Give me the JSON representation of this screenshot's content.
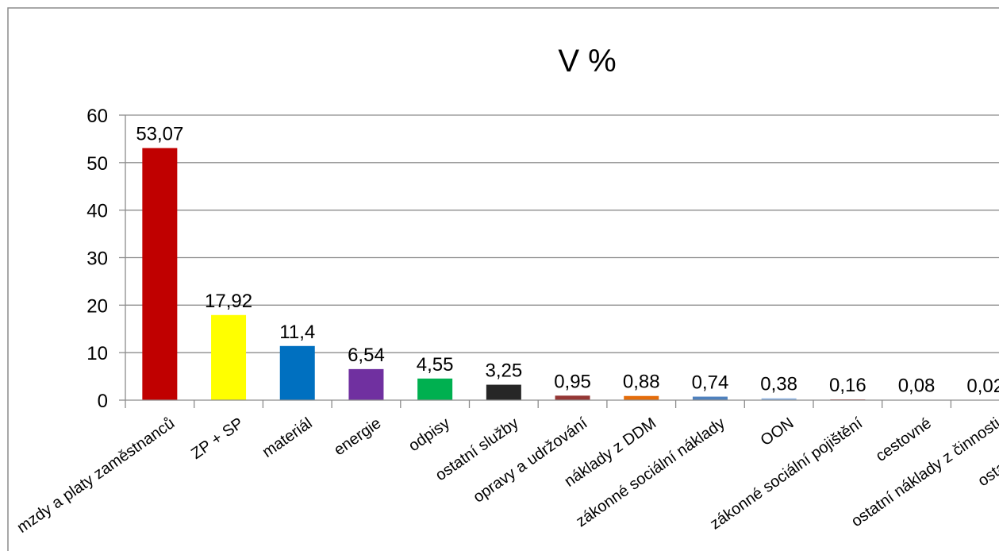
{
  "chart_data": {
    "type": "bar",
    "title": "V %",
    "xlabel": "",
    "ylabel": "",
    "ylim": [
      0,
      60
    ],
    "yticks": [
      0,
      10,
      20,
      30,
      40,
      50,
      60
    ],
    "grid": true,
    "legend": "none",
    "categories": [
      "mzdy a platy zaměstnanců",
      "ZP + SP",
      "materiál",
      "energie",
      "odpisy",
      "ostatní služby",
      "opravy a udržování",
      "náklady z DDM",
      "zákonné sociální náklady",
      "OON",
      "zákonné sociální pojištění",
      "cestovné",
      "ostatní náklady z činnosti",
      "ostatní náklady"
    ],
    "values": [
      53.07,
      17.92,
      11.4,
      6.54,
      4.55,
      3.25,
      0.95,
      0.88,
      0.74,
      0.38,
      0.16,
      0.08,
      0.02,
      0
    ],
    "data_labels": [
      "53,07",
      "17,92",
      "11,4",
      "6,54",
      "4,55",
      "3,25",
      "0,95",
      "0,88",
      "0,74",
      "0,38",
      "0,16",
      "0,08",
      "0,02",
      ""
    ],
    "colors": [
      "#c00000",
      "#ffff00",
      "#0070c0",
      "#7030a0",
      "#00b050",
      "#262626",
      "#953735",
      "#e46c0a",
      "#4f81bd",
      "#8eb4e3",
      "#c0504d",
      "#9bbb59",
      "#8064a2",
      "#4bacc6"
    ]
  }
}
